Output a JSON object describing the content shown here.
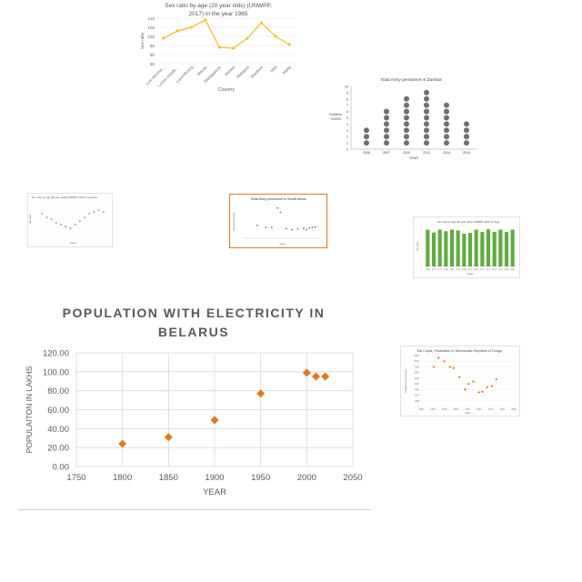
{
  "chart_data": [
    {
      "id": "c1",
      "type": "line",
      "title": [
        "Sex ratio by age (20 year olds) (UNWPP,",
        "2017) in the year 1965"
      ],
      "xlabel": "Country",
      "ylabel": "Sex ratio",
      "ylim": [
        85,
        110
      ],
      "yticks": [
        85,
        90,
        95,
        100,
        105,
        110
      ],
      "categories": [
        "Low-income…",
        "Lower-middle…",
        "Luxembourg",
        "Macao",
        "Madagascar",
        "Malawi",
        "Malaysia",
        "Maldives",
        "Mali",
        "Malta"
      ],
      "series": [
        {
          "values": [
            99,
            103,
            105,
            109,
            94,
            93.5,
            99,
            107.5,
            100,
            95.5
          ]
        }
      ],
      "color": "#f2c12e"
    },
    {
      "id": "c2",
      "type": "scatter",
      "title": "Total Army personnel in Zambia",
      "xlabel": "YEAR",
      "ylabel": [
        "Soldiers",
        "*10000"
      ],
      "ylim": [
        0,
        10
      ],
      "yticks": [
        0,
        1,
        2,
        3,
        4,
        5,
        6,
        7,
        8,
        9,
        10
      ],
      "categories": [
        "2006",
        "2007",
        "2010",
        "2012",
        "2014",
        "2016"
      ],
      "values": [
        3,
        6,
        8,
        9,
        7,
        4
      ],
      "color": "#707070"
    },
    {
      "id": "c3",
      "type": "scatter",
      "title": "Sex ratio by age (20 year olds) (UNWPP, 2017) in Lesotho",
      "xlabel": "Years",
      "ylabel": "Sex ratio",
      "x": [
        1950,
        1955,
        1960,
        1965,
        1970,
        1975,
        1980,
        1985,
        1990,
        1995,
        2000,
        2005,
        2010,
        2015
      ],
      "y": [
        96,
        94,
        93,
        91,
        90,
        89,
        88,
        90,
        92,
        94,
        96,
        97,
        98,
        97
      ],
      "ylim": [
        84,
        102
      ],
      "color": "#7aa6c2"
    },
    {
      "id": "c4",
      "type": "scatter",
      "title": "Total Army personnel in South Africa",
      "xlabel": "Year",
      "ylabel": "Armed personnel",
      "x": [
        1990,
        1993,
        1995,
        1997,
        1998,
        2000,
        2002,
        2004,
        2006,
        2007,
        2008,
        2009,
        2010
      ],
      "y": [
        3,
        2.5,
        2.5,
        7,
        6,
        2.2,
        2.0,
        2.1,
        2.3,
        2.0,
        2.4,
        2.5,
        2.6
      ],
      "ylim": [
        0,
        8
      ],
      "color": "#3f8f3f"
    },
    {
      "id": "c5",
      "type": "bar",
      "title": "Sex ratio by age (20 year olds) (UNWPP, 2017) in Togo",
      "xlabel": "Years",
      "ylabel": "Sex ratio",
      "categories": [
        "1965",
        "1970",
        "1975",
        "1980",
        "1985",
        "1990",
        "1995",
        "2000",
        "2005",
        "2010",
        "2015",
        "2020",
        "2025",
        "2030",
        "2035"
      ],
      "values": [
        92,
        85,
        92,
        88,
        92,
        90,
        82,
        84,
        92,
        86,
        93,
        86,
        92,
        86,
        92
      ],
      "ylim": [
        0,
        100
      ],
      "color": "#5fac3f"
    },
    {
      "id": "c6",
      "type": "scatter",
      "title": "Tea Crops, Production in Democratic Republic of Congo",
      "xlabel": "Years",
      "ylabel": "Production (in tonnes)",
      "x": [
        1961,
        1965,
        1970,
        1975,
        1978,
        1983,
        1988,
        1991,
        1995,
        2000,
        2003,
        2007,
        2011,
        2015
      ],
      "y": [
        7000,
        8600,
        8000,
        7000,
        6800,
        5200,
        3000,
        4000,
        4400,
        2500,
        2600,
        3400,
        3600,
        4800
      ],
      "xlim": [
        1950,
        2030
      ],
      "ylim": [
        0,
        9000
      ],
      "color": "#e0792a"
    },
    {
      "id": "c7",
      "type": "scatter",
      "title": [
        "POPULATION WITH ELECTRICITY IN",
        "BELARUS"
      ],
      "xlabel": "YEAR",
      "ylabel": "POPULAITON IN LAKHS",
      "x": [
        1800,
        1850,
        1900,
        1950,
        2000,
        2010,
        2020
      ],
      "y": [
        24,
        31,
        49,
        77,
        99,
        95,
        95
      ],
      "xlim": [
        1750,
        2050
      ],
      "ylim": [
        0,
        120
      ],
      "xticks": [
        1750,
        1800,
        1850,
        1900,
        1950,
        2000,
        2050
      ],
      "yticks": [
        "0.00",
        "20.00",
        "40.00",
        "60.00",
        "80.00",
        "100.00",
        "120.00"
      ],
      "grid": true,
      "color": "#e07a22"
    }
  ]
}
